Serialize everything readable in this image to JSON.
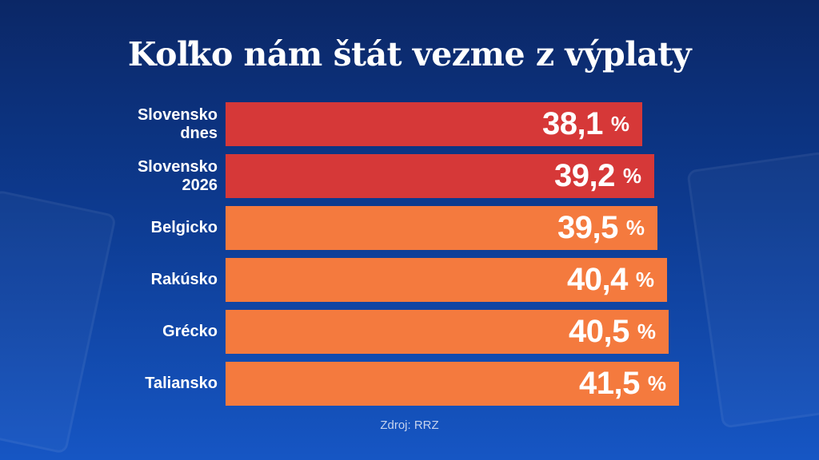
{
  "chart_data": {
    "type": "bar",
    "orientation": "horizontal",
    "title": "Koľko nám štát vezme z výplaty",
    "categories": [
      "Slovensko\ndnes",
      "Slovensko\n2026",
      "Belgicko",
      "Rakúsko",
      "Grécko",
      "Taliansko"
    ],
    "values": [
      38.1,
      39.2,
      39.5,
      40.4,
      40.5,
      41.5
    ],
    "value_labels": [
      "38,1",
      "39,2",
      "39,5",
      "40,4",
      "40,5",
      "41,5"
    ],
    "unit": "%",
    "bar_colors": [
      "#d63838",
      "#d63838",
      "#f47a3e",
      "#f47a3e",
      "#f47a3e",
      "#f47a3e"
    ],
    "grid": false
  },
  "source": "Zdroj: RRZ"
}
